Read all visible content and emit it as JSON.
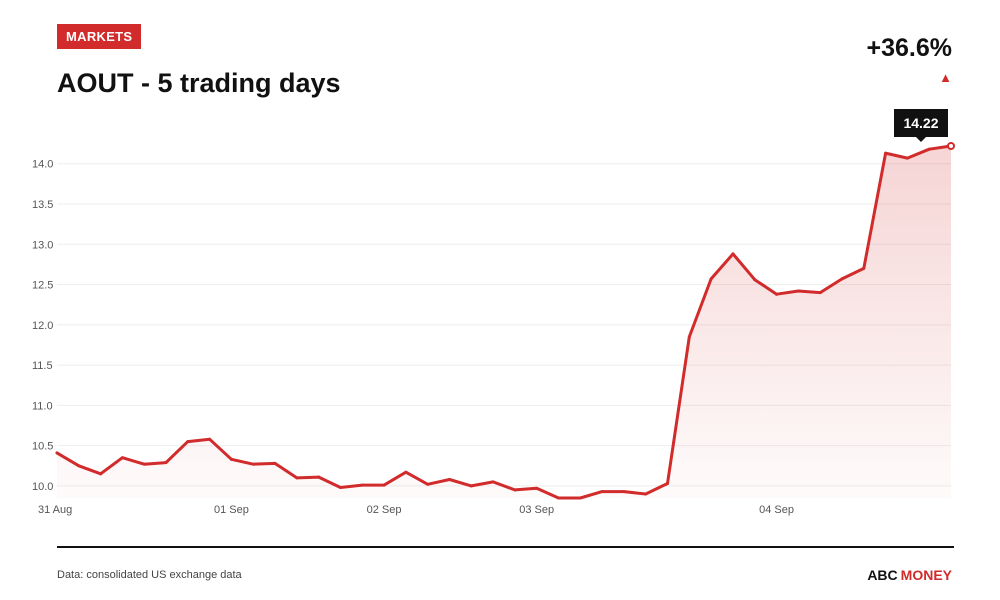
{
  "header": {
    "badge": "MARKETS",
    "title": "AOUT - 5 trading days",
    "change": "+36.6%",
    "change_arrow": "▲"
  },
  "footer": {
    "source": "Data: consolidated US exchange data",
    "brand_primary": "ABC",
    "brand_secondary": "MONEY"
  },
  "colors": {
    "accent": "#d12b2b",
    "line": "#d12b2b",
    "grid": "#eeeeee",
    "text": "#111111"
  },
  "chart_data": {
    "type": "area",
    "title": "AOUT - 5 trading days",
    "xlabel": "",
    "ylabel": "",
    "ylim": [
      9.85,
      14.22
    ],
    "yticks": [
      10.0,
      10.5,
      11.0,
      11.5,
      12.0,
      12.5,
      13.0,
      13.5,
      14.0
    ],
    "ytick_labels": [
      "10.0",
      "10.5",
      "11.0",
      "11.5",
      "12.0",
      "12.5",
      "13.0",
      "13.5",
      "14.0"
    ],
    "xticks": [
      {
        "label": "31 Aug",
        "index": 0
      },
      {
        "label": "01 Sep",
        "index": 8
      },
      {
        "label": "02 Sep",
        "index": 15
      },
      {
        "label": "03 Sep",
        "index": 22
      },
      {
        "label": "04 Sep",
        "index": 33
      }
    ],
    "series": [
      {
        "values": [
          10.41,
          10.25,
          10.15,
          10.35,
          10.27,
          10.29,
          10.55,
          10.58,
          10.33,
          10.27,
          10.28,
          10.1,
          10.11,
          9.98,
          10.01,
          10.01,
          10.17,
          10.02,
          10.08,
          10.0,
          10.05,
          9.95,
          9.97,
          9.85,
          9.85,
          9.93,
          9.93,
          9.9,
          10.03,
          11.85,
          12.57,
          12.88,
          12.56,
          12.38,
          12.42,
          12.4,
          12.57,
          12.7,
          14.13,
          14.07,
          14.18,
          14.22
        ]
      }
    ],
    "last_value_label": "14.22",
    "grid": true,
    "legend": "none"
  }
}
